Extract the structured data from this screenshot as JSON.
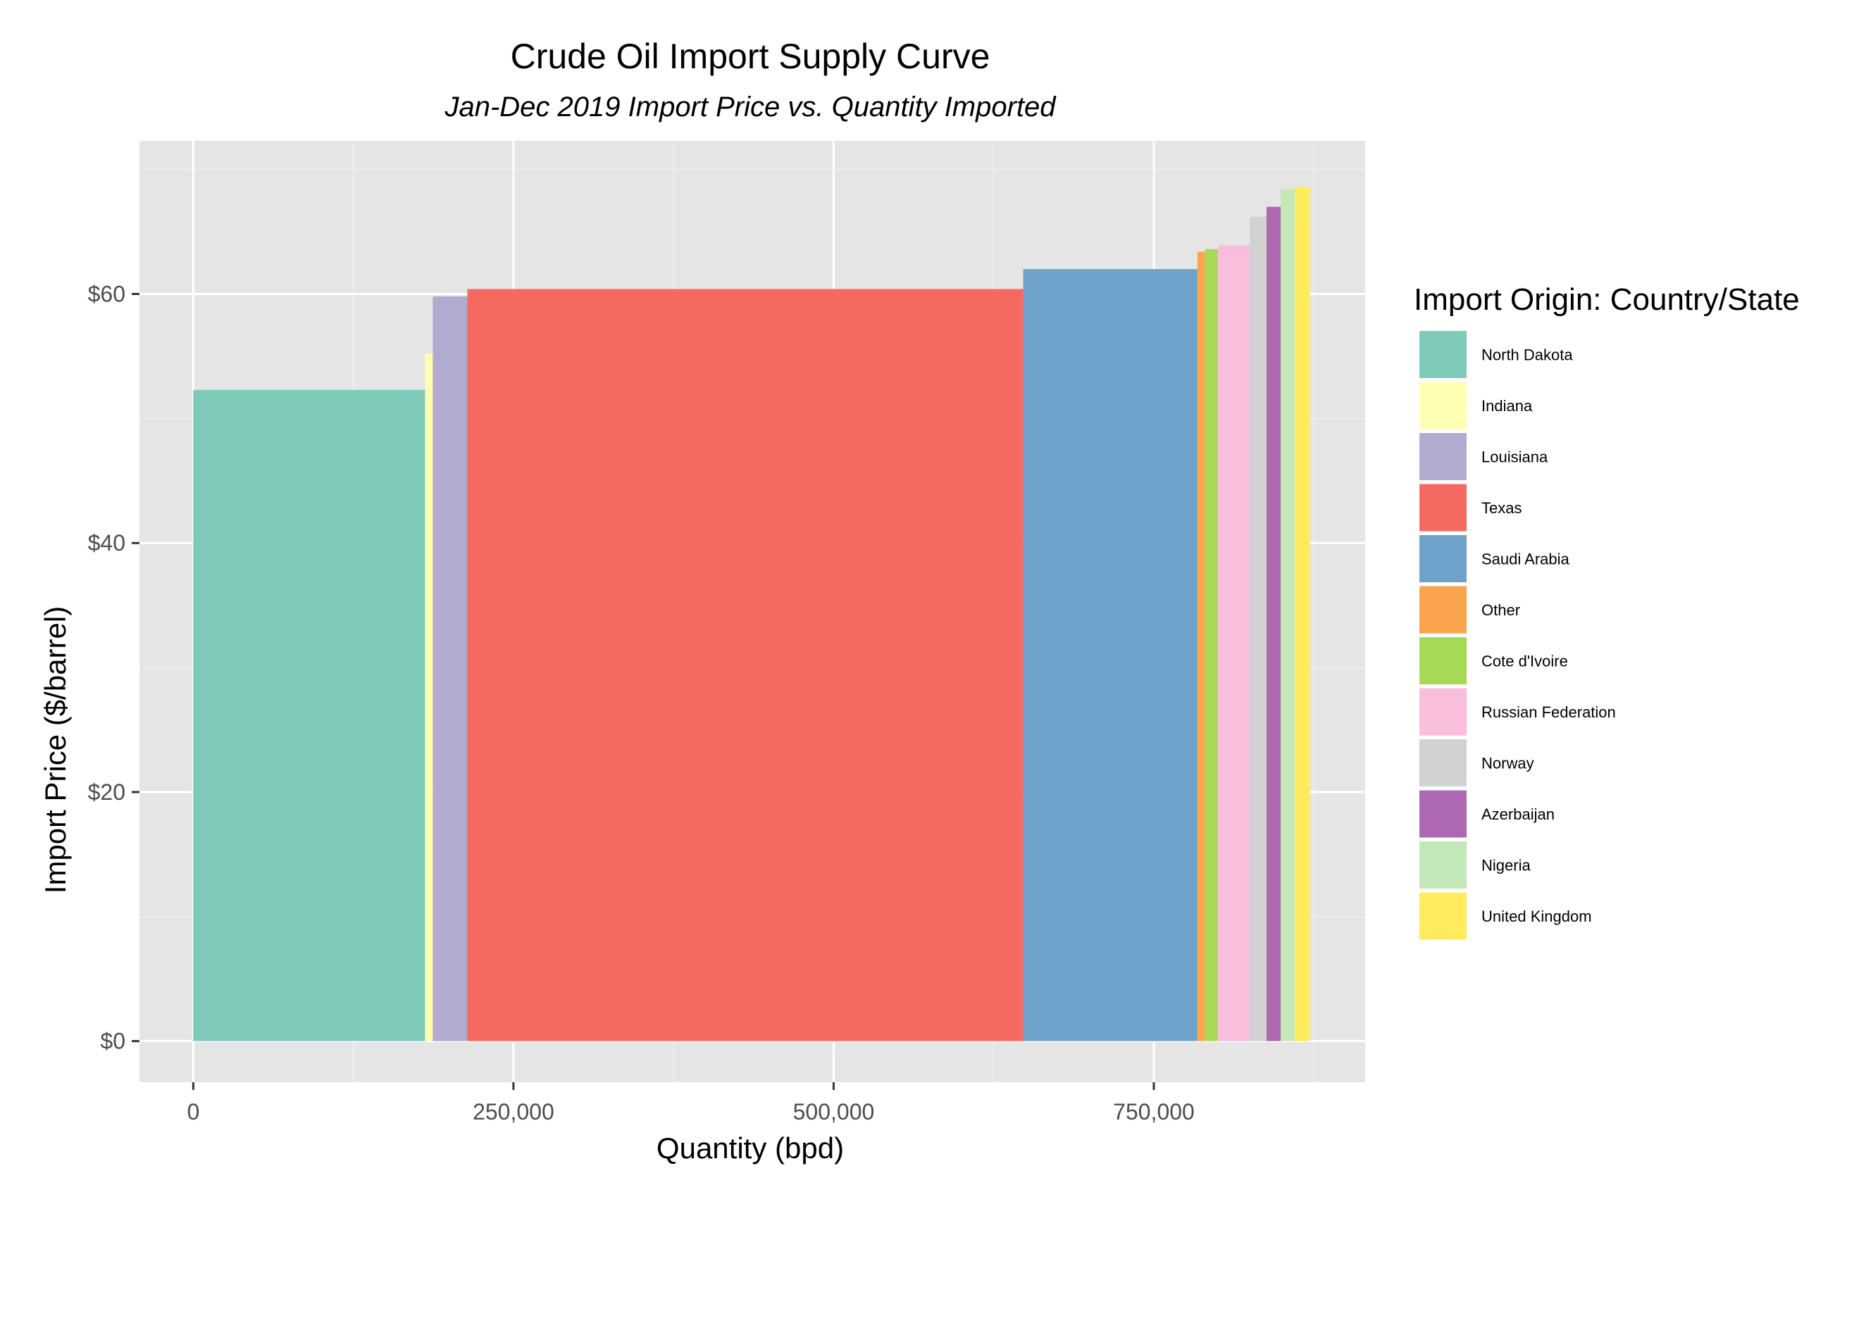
{
  "chart_data": {
    "type": "bar",
    "subtype": "variable-width supply curve",
    "title": "Crude Oil Import Supply Curve",
    "subtitle": "Jan-Dec 2019 Import Price vs. Quantity Imported",
    "xlabel": "Quantity (bpd)",
    "ylabel": "Import Price ($/barrel)",
    "xlim": [
      -42000,
      915000
    ],
    "ylim": [
      -3.3,
      72.3
    ],
    "x_ticks": [
      0,
      250000,
      500000,
      750000
    ],
    "x_tick_labels": [
      "0",
      "250,000",
      "500,000",
      "750,000"
    ],
    "y_ticks": [
      0,
      20,
      40,
      60
    ],
    "y_tick_labels": [
      "$0",
      "$20",
      "$40",
      "$60"
    ],
    "grid": true,
    "legend": {
      "title": "Import Origin: Country/State",
      "position": "right"
    },
    "series": [
      {
        "name": "North Dakota",
        "x_start": 0,
        "x_end": 181000,
        "value": 52.3,
        "color": "#7FCBBA"
      },
      {
        "name": "Indiana",
        "x_start": 181000,
        "x_end": 187000,
        "value": 55.2,
        "color": "#FFFFB3"
      },
      {
        "name": "Louisiana",
        "x_start": 187000,
        "x_end": 214000,
        "value": 59.8,
        "color": "#B0ABCF"
      },
      {
        "name": "Texas",
        "x_start": 214000,
        "x_end": 648000,
        "value": 60.4,
        "color": "#F46A60"
      },
      {
        "name": "Saudi Arabia",
        "x_start": 648000,
        "x_end": 784000,
        "value": 62.0,
        "color": "#6FA2CA"
      },
      {
        "name": "Other",
        "x_start": 784000,
        "x_end": 790000,
        "value": 63.4,
        "color": "#FBA450"
      },
      {
        "name": "Cote d'Ivoire",
        "x_start": 790000,
        "x_end": 800000,
        "value": 63.6,
        "color": "#A6D956"
      },
      {
        "name": "Russian Federation",
        "x_start": 800000,
        "x_end": 825000,
        "value": 63.9,
        "color": "#F8BEDC"
      },
      {
        "name": "Norway",
        "x_start": 825000,
        "x_end": 838000,
        "value": 66.2,
        "color": "#D1D1D1"
      },
      {
        "name": "Azerbaijan",
        "x_start": 838000,
        "x_end": 849000,
        "value": 67.0,
        "color": "#AD68B2"
      },
      {
        "name": "Nigeria",
        "x_start": 849000,
        "x_end": 860000,
        "value": 68.4,
        "color": "#C4E7BA"
      },
      {
        "name": "United Kingdom",
        "x_start": 860000,
        "x_end": 872000,
        "value": 68.6,
        "color": "#FEEB5E"
      }
    ]
  }
}
